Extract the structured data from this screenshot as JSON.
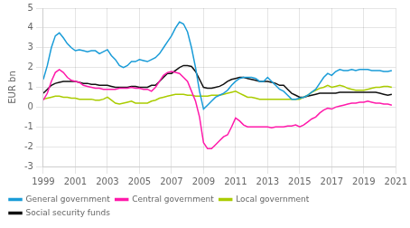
{
  "chart_data": {
    "type": "line",
    "ylabel": "EUR bn",
    "x": [
      1999,
      1999.25,
      1999.5,
      1999.75,
      2000,
      2000.25,
      2000.5,
      2000.75,
      2001,
      2001.25,
      2001.5,
      2001.75,
      2002,
      2002.25,
      2002.5,
      2002.75,
      2003,
      2003.25,
      2003.5,
      2003.75,
      2004,
      2004.25,
      2004.5,
      2004.75,
      2005,
      2005.25,
      2005.5,
      2005.75,
      2006,
      2006.25,
      2006.5,
      2006.75,
      2007,
      2007.25,
      2007.5,
      2007.75,
      2008,
      2008.25,
      2008.5,
      2008.75,
      2009,
      2009.25,
      2009.5,
      2009.75,
      2010,
      2010.25,
      2010.5,
      2010.75,
      2011,
      2011.25,
      2011.5,
      2011.75,
      2012,
      2012.25,
      2012.5,
      2012.75,
      2013,
      2013.25,
      2013.5,
      2013.75,
      2014,
      2014.25,
      2014.5,
      2014.75,
      2015,
      2015.25,
      2015.5,
      2015.75,
      2016,
      2016.25,
      2016.5,
      2016.75,
      2017,
      2017.25,
      2017.5,
      2017.75,
      2018,
      2018.25,
      2018.5,
      2018.75,
      2019,
      2019.25,
      2019.5,
      2019.75,
      2020,
      2020.25,
      2020.5,
      2020.75
    ],
    "series": [
      {
        "name": "General government",
        "color": "#1a9cd8",
        "values": [
          1.4,
          2.1,
          3.0,
          3.6,
          3.75,
          3.5,
          3.2,
          3.0,
          2.85,
          2.9,
          2.85,
          2.8,
          2.85,
          2.85,
          2.7,
          2.8,
          2.9,
          2.6,
          2.4,
          2.1,
          2.0,
          2.1,
          2.3,
          2.3,
          2.4,
          2.35,
          2.3,
          2.4,
          2.5,
          2.7,
          3.0,
          3.3,
          3.6,
          4.0,
          4.3,
          4.2,
          3.8,
          3.0,
          2.0,
          0.8,
          -0.1,
          0.1,
          0.3,
          0.5,
          0.6,
          0.7,
          0.85,
          1.1,
          1.3,
          1.45,
          1.5,
          1.5,
          1.5,
          1.45,
          1.3,
          1.3,
          1.5,
          1.3,
          1.1,
          0.9,
          0.8,
          0.6,
          0.4,
          0.4,
          0.45,
          0.5,
          0.6,
          0.75,
          0.9,
          1.2,
          1.5,
          1.7,
          1.6,
          1.8,
          1.9,
          1.85,
          1.85,
          1.9,
          1.85,
          1.9,
          1.9,
          1.9,
          1.85,
          1.85,
          1.85,
          1.8,
          1.8,
          1.85
        ]
      },
      {
        "name": "Central government",
        "color": "#ff1aaa",
        "values": [
          0.35,
          0.7,
          1.3,
          1.75,
          1.9,
          1.75,
          1.5,
          1.35,
          1.3,
          1.25,
          1.1,
          1.05,
          1.0,
          0.95,
          0.95,
          0.9,
          0.9,
          0.9,
          0.9,
          0.95,
          0.95,
          0.95,
          1.0,
          0.95,
          0.95,
          0.9,
          0.9,
          0.8,
          1.0,
          1.3,
          1.6,
          1.75,
          1.8,
          1.75,
          1.7,
          1.5,
          1.3,
          0.8,
          0.3,
          -0.5,
          -1.8,
          -2.1,
          -2.1,
          -1.9,
          -1.7,
          -1.5,
          -1.4,
          -1.0,
          -0.55,
          -0.7,
          -0.9,
          -1.0,
          -1.0,
          -1.0,
          -1.0,
          -1.0,
          -1.0,
          -1.05,
          -1.0,
          -1.0,
          -1.0,
          -0.95,
          -0.95,
          -0.9,
          -1.0,
          -0.9,
          -0.75,
          -0.6,
          -0.5,
          -0.3,
          -0.15,
          -0.05,
          -0.1,
          0.0,
          0.05,
          0.1,
          0.15,
          0.2,
          0.2,
          0.25,
          0.25,
          0.3,
          0.25,
          0.2,
          0.2,
          0.15,
          0.15,
          0.1
        ]
      },
      {
        "name": "Local government",
        "color": "#aacc00",
        "values": [
          0.4,
          0.45,
          0.5,
          0.55,
          0.55,
          0.5,
          0.5,
          0.45,
          0.45,
          0.4,
          0.4,
          0.4,
          0.4,
          0.35,
          0.35,
          0.4,
          0.5,
          0.35,
          0.2,
          0.15,
          0.2,
          0.25,
          0.3,
          0.2,
          0.2,
          0.2,
          0.2,
          0.3,
          0.35,
          0.45,
          0.5,
          0.55,
          0.6,
          0.65,
          0.65,
          0.65,
          0.6,
          0.6,
          0.55,
          0.55,
          0.55,
          0.55,
          0.6,
          0.6,
          0.6,
          0.65,
          0.7,
          0.75,
          0.8,
          0.7,
          0.6,
          0.5,
          0.5,
          0.45,
          0.4,
          0.4,
          0.4,
          0.4,
          0.4,
          0.4,
          0.4,
          0.4,
          0.4,
          0.4,
          0.4,
          0.5,
          0.6,
          0.75,
          0.85,
          0.95,
          1.0,
          1.1,
          1.0,
          1.05,
          1.1,
          1.05,
          0.95,
          0.9,
          0.85,
          0.85,
          0.85,
          0.9,
          0.95,
          1.0,
          1.0,
          1.05,
          1.05,
          1.0
        ]
      },
      {
        "name": "Social security funds",
        "color": "#111111",
        "values": [
          0.7,
          0.9,
          1.1,
          1.2,
          1.25,
          1.3,
          1.3,
          1.3,
          1.3,
          1.25,
          1.2,
          1.2,
          1.15,
          1.15,
          1.1,
          1.1,
          1.1,
          1.05,
          1.0,
          1.0,
          1.0,
          1.0,
          1.05,
          1.05,
          1.0,
          1.0,
          1.0,
          1.1,
          1.1,
          1.3,
          1.5,
          1.7,
          1.7,
          1.85,
          2.0,
          2.1,
          2.1,
          2.05,
          1.8,
          1.4,
          1.0,
          0.95,
          0.95,
          1.0,
          1.05,
          1.15,
          1.3,
          1.4,
          1.45,
          1.5,
          1.5,
          1.45,
          1.4,
          1.35,
          1.3,
          1.3,
          1.3,
          1.25,
          1.2,
          1.1,
          1.1,
          0.9,
          0.7,
          0.6,
          0.5,
          0.5,
          0.55,
          0.6,
          0.65,
          0.7,
          0.7,
          0.7,
          0.7,
          0.7,
          0.75,
          0.75,
          0.75,
          0.75,
          0.75,
          0.75,
          0.75,
          0.75,
          0.75,
          0.75,
          0.7,
          0.65,
          0.6,
          0.65
        ]
      }
    ],
    "xlim": [
      1999,
      2021
    ],
    "xticks": [
      1999,
      2001,
      2003,
      2005,
      2007,
      2009,
      2011,
      2013,
      2015,
      2017,
      2019,
      2021
    ],
    "ylim": [
      -3,
      5
    ],
    "yticks": [
      -3,
      -2,
      -1,
      0,
      1,
      2,
      3,
      4,
      5
    ],
    "grid": true,
    "legend": "lower left"
  }
}
